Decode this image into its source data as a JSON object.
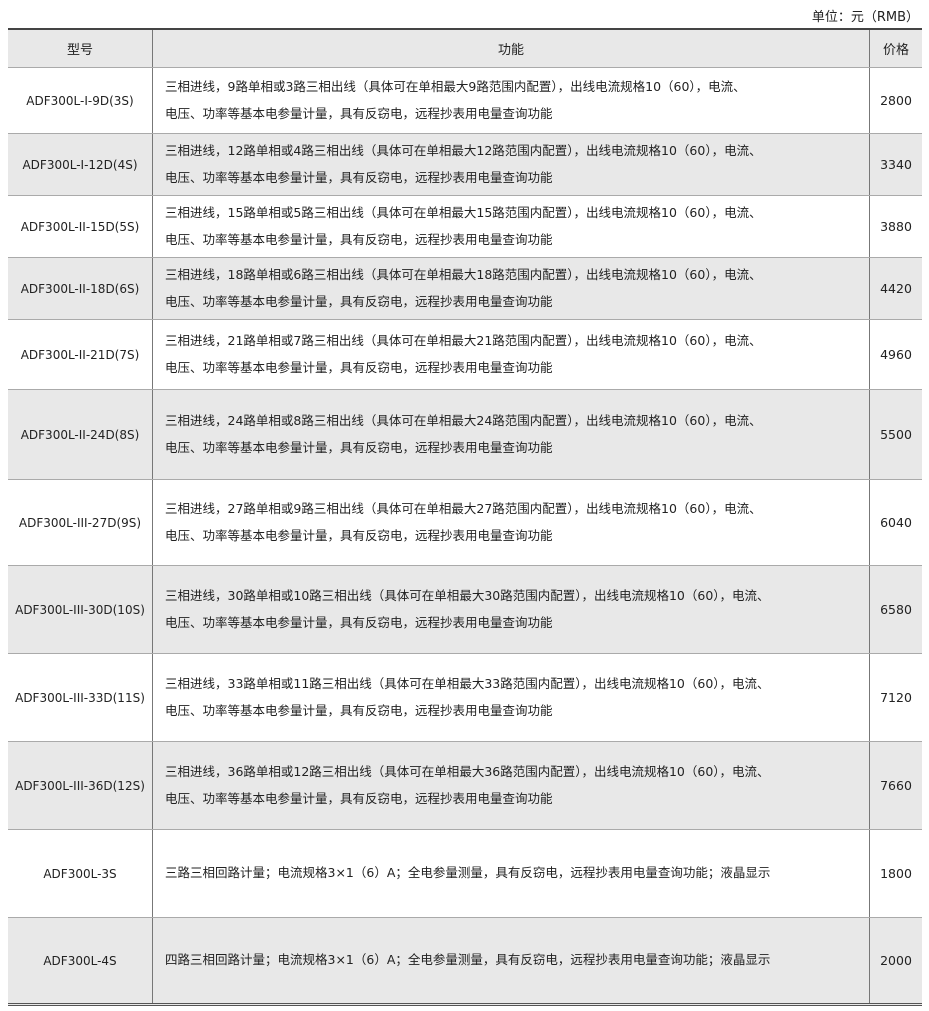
{
  "unit_label": "单位：元（RMB）",
  "headers": {
    "model": "型号",
    "function": "功能",
    "price": "价格"
  },
  "rows": [
    {
      "model": "ADF300L-I-9D(3S)",
      "line1": "三相进线，9路单相或3路三相出线（具体可在单相最大9路范围内配置），出线电流规格10（60），电流、",
      "line2": "电压、功率等基本电参量计量，具有反窃电，远程抄表用电量查询功能",
      "price": "2800"
    },
    {
      "model": "ADF300L-I-12D(4S)",
      "line1": "三相进线，12路单相或4路三相出线（具体可在单相最大12路范围内配置），出线电流规格10（60），电流、",
      "line2": "电压、功率等基本电参量计量，具有反窃电，远程抄表用电量查询功能",
      "price": "3340"
    },
    {
      "model": "ADF300L-II-15D(5S)",
      "line1": "三相进线，15路单相或5路三相出线（具体可在单相最大15路范围内配置），出线电流规格10（60），电流、",
      "line2": "电压、功率等基本电参量计量，具有反窃电，远程抄表用电量查询功能",
      "price": "3880"
    },
    {
      "model": "ADF300L-II-18D(6S)",
      "line1": "三相进线，18路单相或6路三相出线（具体可在单相最大18路范围内配置），出线电流规格10（60），电流、",
      "line2": "电压、功率等基本电参量计量，具有反窃电，远程抄表用电量查询功能",
      "price": "4420"
    },
    {
      "model": "ADF300L-II-21D(7S)",
      "line1": "三相进线，21路单相或7路三相出线（具体可在单相最大21路范围内配置），出线电流规格10（60），电流、",
      "line2": "电压、功率等基本电参量计量，具有反窃电，远程抄表用电量查询功能",
      "price": "4960"
    },
    {
      "model": "ADF300L-II-24D(8S)",
      "line1": "三相进线，24路单相或8路三相出线（具体可在单相最大24路范围内配置），出线电流规格10（60），电流、",
      "line2": "电压、功率等基本电参量计量，具有反窃电，远程抄表用电量查询功能",
      "price": "5500"
    },
    {
      "model": "ADF300L-III-27D(9S)",
      "line1": "三相进线，27路单相或9路三相出线（具体可在单相最大27路范围内配置），出线电流规格10（60），电流、",
      "line2": "电压、功率等基本电参量计量，具有反窃电，远程抄表用电量查询功能",
      "price": "6040"
    },
    {
      "model": "ADF300L-III-30D(10S)",
      "line1": "三相进线，30路单相或10路三相出线（具体可在单相最大30路范围内配置），出线电流规格10（60），电流、",
      "line2": "电压、功率等基本电参量计量，具有反窃电，远程抄表用电量查询功能",
      "price": "6580"
    },
    {
      "model": "ADF300L-III-33D(11S)",
      "line1": "三相进线，33路单相或11路三相出线（具体可在单相最大33路范围内配置），出线电流规格10（60），电流、",
      "line2": "电压、功率等基本电参量计量，具有反窃电，远程抄表用电量查询功能",
      "price": "7120"
    },
    {
      "model": "ADF300L-III-36D(12S)",
      "line1": "三相进线，36路单相或12路三相出线（具体可在单相最大36路范围内配置），出线电流规格10（60），电流、",
      "line2": "电压、功率等基本电参量计量，具有反窃电，远程抄表用电量查询功能",
      "price": "7660"
    },
    {
      "model": "ADF300L-3S",
      "line1": "三路三相回路计量；电流规格3×1（6）A；全电参量测量，具有反窃电，远程抄表用电量查询功能；液晶显示",
      "line2": "",
      "price": "1800"
    },
    {
      "model": "ADF300L-4S",
      "line1": "四路三相回路计量；电流规格3×1（6）A；全电参量测量，具有反窃电，远程抄表用电量查询功能；液晶显示",
      "line2": "",
      "price": "2000"
    }
  ],
  "colors": {
    "header_bg": "#e8e8e8",
    "shade_bg": "#e8e8e8"
  }
}
